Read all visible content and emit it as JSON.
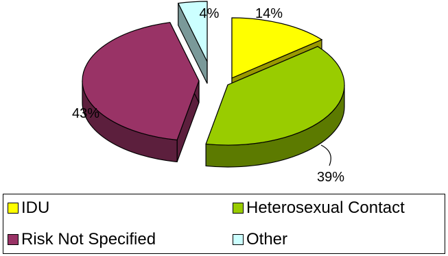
{
  "chart_data": {
    "type": "pie",
    "title": "",
    "style": "3d-exploded",
    "legend_position": "bottom",
    "slices": [
      {
        "label": "IDU",
        "value": 14,
        "value_label": "14%",
        "color": "#ffff00",
        "side_color": "#999900"
      },
      {
        "label": "Heterosexual Contact",
        "value": 39,
        "value_label": "39%",
        "color": "#99cc00",
        "side_color": "#5c7a00"
      },
      {
        "label": "Risk Not Specified",
        "value": 43,
        "value_label": "43%",
        "color": "#993366",
        "side_color": "#5c1f3d"
      },
      {
        "label": "Other",
        "value": 4,
        "value_label": "4%",
        "color": "#ccffff",
        "side_color": "#7a9999"
      }
    ]
  }
}
